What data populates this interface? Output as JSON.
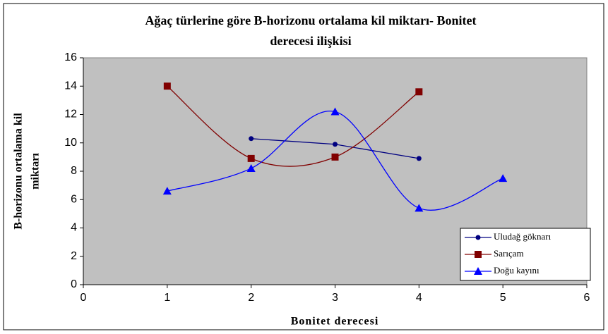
{
  "chart_data": {
    "type": "line",
    "title": [
      "Ağaç türlerine göre B-horizonu ortalama kil miktarı- Bonitet",
      "derecesi ilişkisi"
    ],
    "xlabel": "Bonitet derecesi",
    "ylabel": [
      "B-horizonu ortalama kil",
      "miktarı"
    ],
    "xlim": [
      0,
      6
    ],
    "xticks": [
      0,
      1,
      2,
      3,
      4,
      5,
      6
    ],
    "ylim": [
      0,
      16
    ],
    "yticks": [
      0,
      2,
      4,
      6,
      8,
      10,
      12,
      14,
      16
    ],
    "plot_background": "#c0c0c0",
    "legend": "lower right",
    "series": [
      {
        "name": "Uludağ göknarı",
        "color": "#000080",
        "marker": "circle",
        "smooth": false,
        "x": [
          2,
          3,
          4
        ],
        "values": [
          10.3,
          9.9,
          8.9
        ]
      },
      {
        "name": "Sarıçam",
        "color": "#800000",
        "marker": "square",
        "smooth": true,
        "x": [
          1,
          2,
          3,
          4
        ],
        "values": [
          14.0,
          8.9,
          9.0,
          13.6
        ]
      },
      {
        "name": "Doğu kayını",
        "color": "#0000ff",
        "marker": "triangle",
        "smooth": true,
        "x": [
          1,
          2,
          3,
          4,
          5
        ],
        "values": [
          6.6,
          8.2,
          12.2,
          5.4,
          7.5
        ]
      }
    ]
  }
}
